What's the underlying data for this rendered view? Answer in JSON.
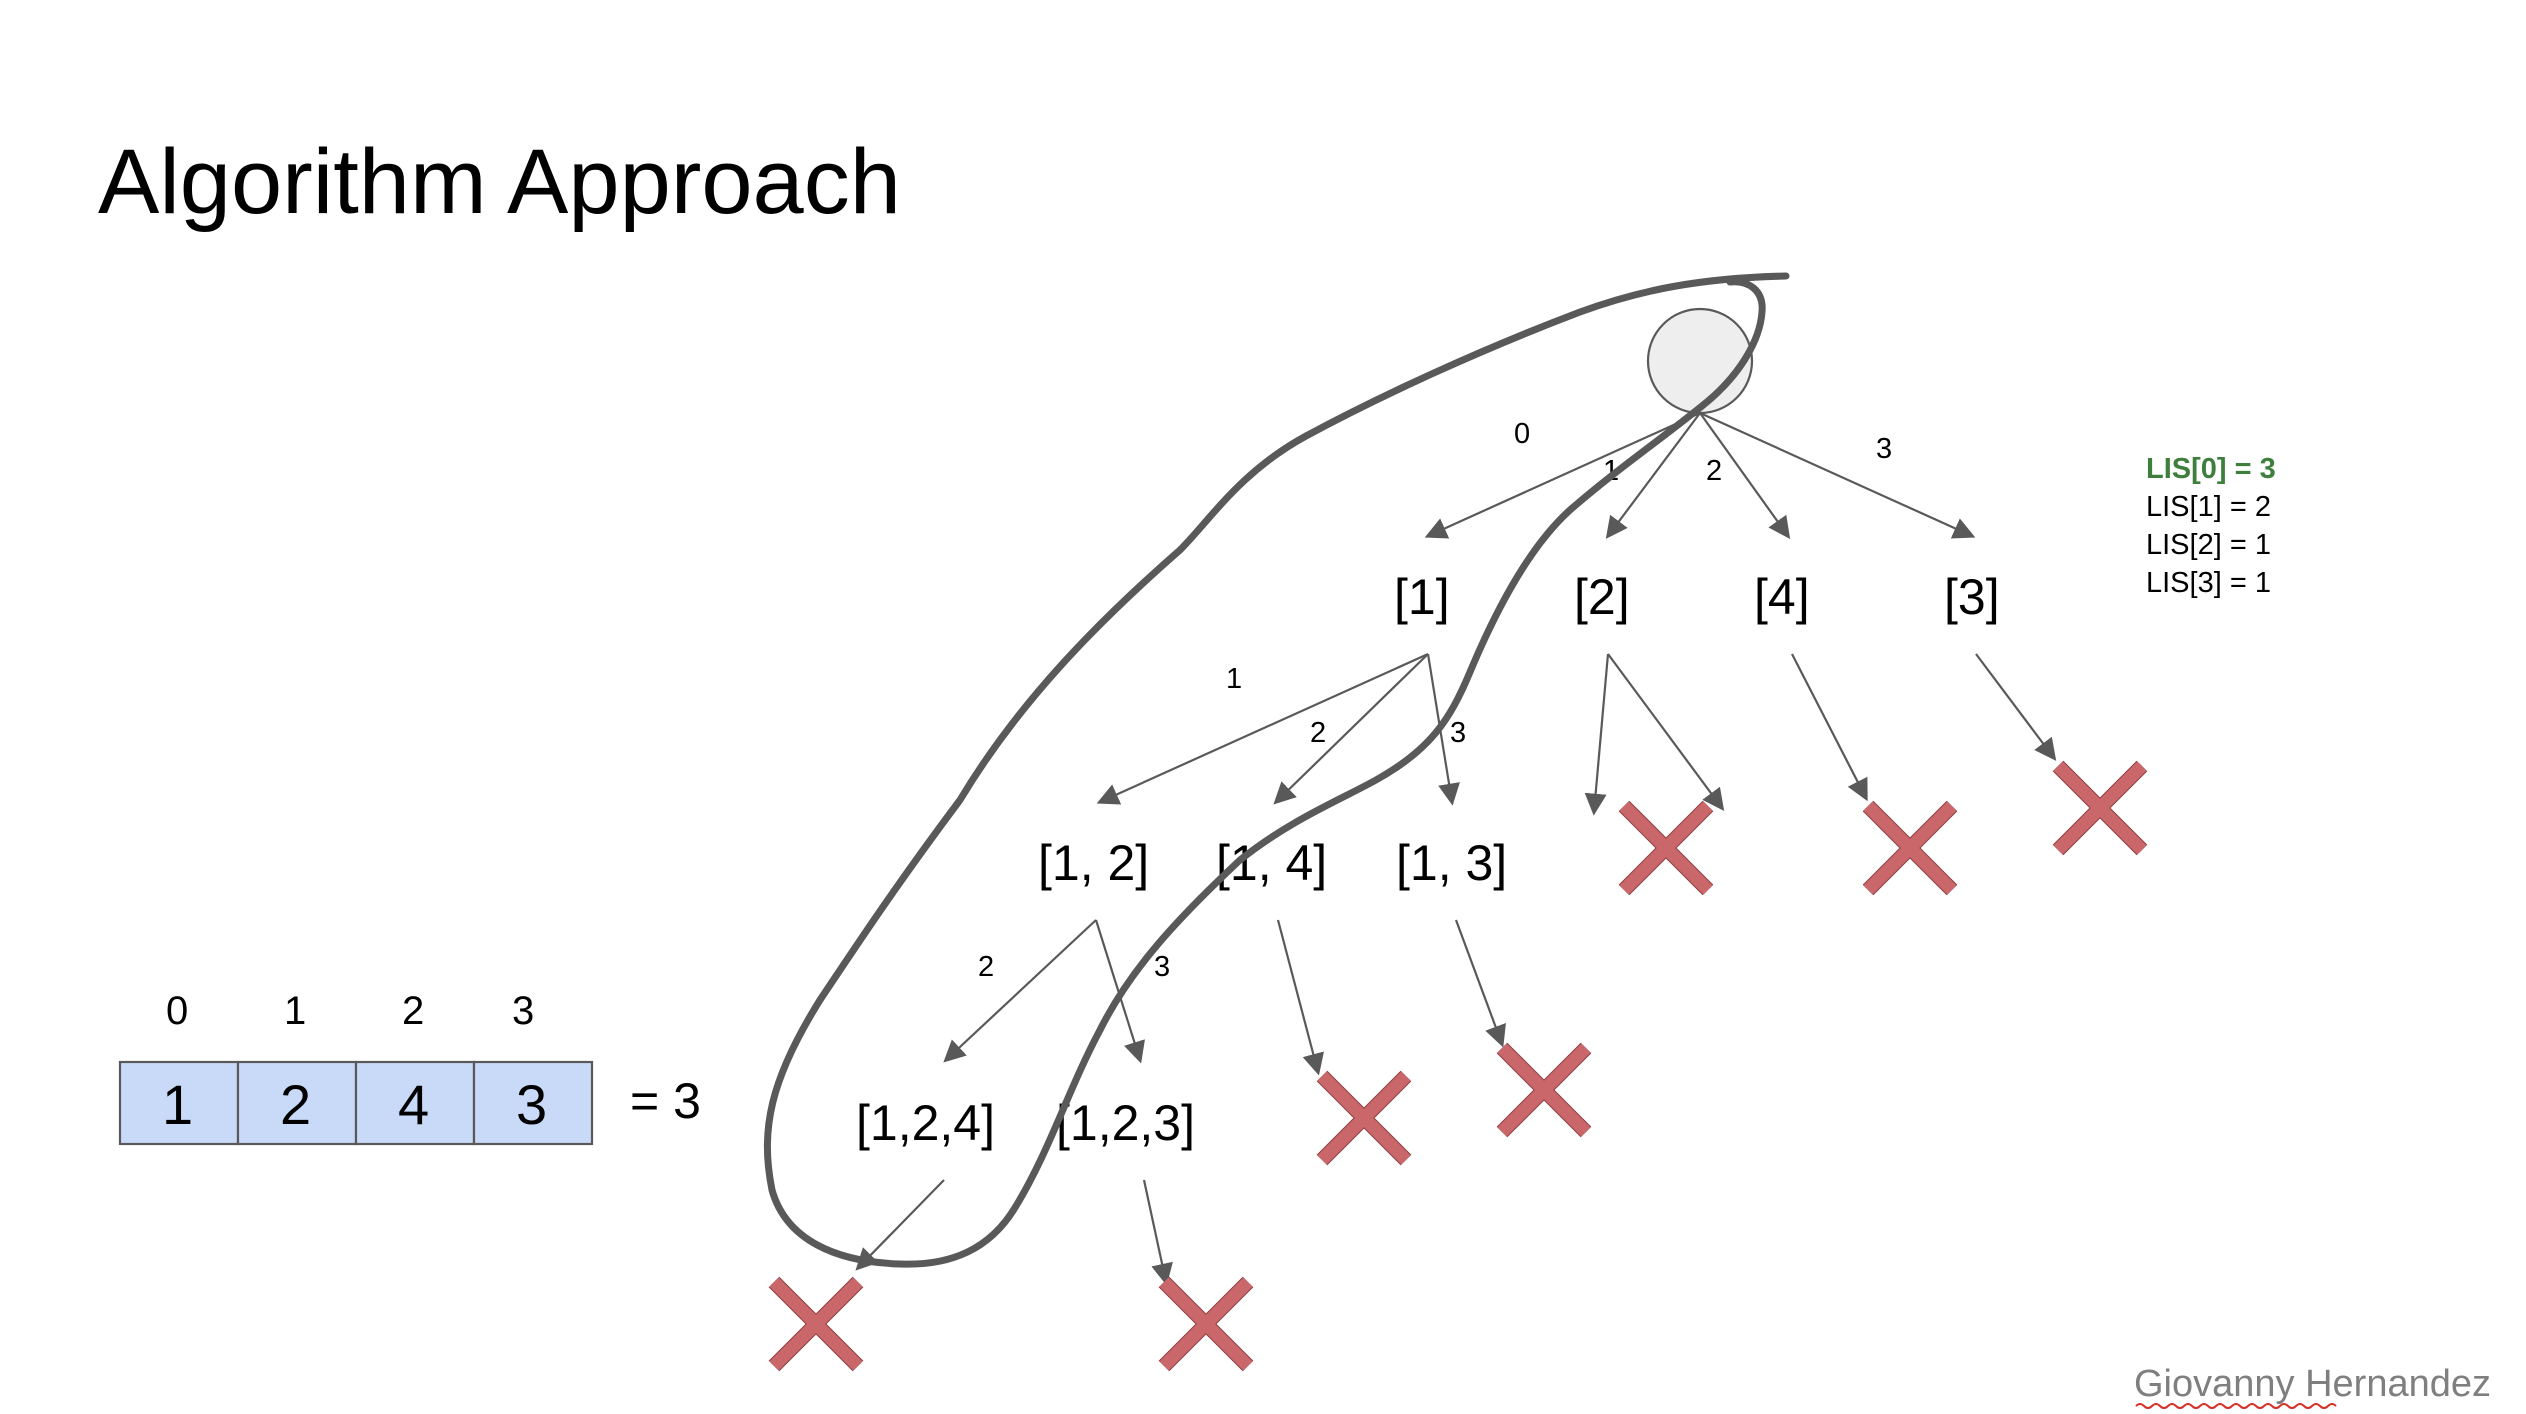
{
  "slide": {
    "title": "Algorithm Approach",
    "author": "Giovanny Hernandez"
  },
  "array": {
    "indices": [
      "0",
      "1",
      "2",
      "3"
    ],
    "values": [
      "1",
      "2",
      "4",
      "3"
    ],
    "result": "= 3",
    "cell_fill": "#c9daf8"
  },
  "tree": {
    "root_fill": "#eeeeee",
    "level1": [
      "[1]",
      "[2]",
      "[4]",
      "[3]"
    ],
    "level1_edges": [
      "0",
      "1",
      "2",
      "3"
    ],
    "level2": [
      "[1, 2]",
      "[1, 4]",
      "[1, 3]"
    ],
    "level2_edges": [
      "1",
      "2",
      "3"
    ],
    "level3": [
      "[1,2,4]",
      "[1,2,3]"
    ],
    "level3_edges": [
      "2",
      "3"
    ],
    "dead_end_color": "#c9676a",
    "highlight_path_color": "#595959"
  },
  "lis": [
    {
      "text": "LIS[0] = 3",
      "highlight": true
    },
    {
      "text": "LIS[1] = 2",
      "highlight": false
    },
    {
      "text": "LIS[2] = 1",
      "highlight": false
    },
    {
      "text": "LIS[3] = 1",
      "highlight": false
    }
  ],
  "colors": {
    "highlight_text": "#3e7f3e",
    "author_text": "#7f7f7f"
  }
}
